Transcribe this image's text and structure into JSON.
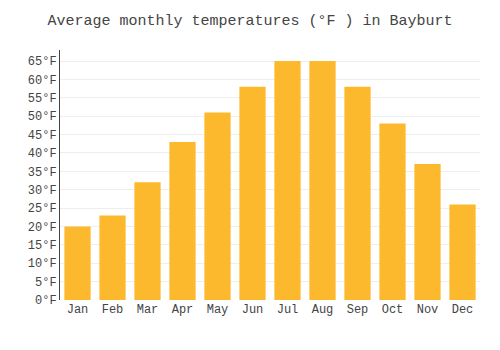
{
  "chart_data": {
    "type": "bar",
    "title": "Average monthly temperatures (°F ) in Bayburt",
    "categories": [
      "Jan",
      "Feb",
      "Mar",
      "Apr",
      "May",
      "Jun",
      "Jul",
      "Aug",
      "Sep",
      "Oct",
      "Nov",
      "Dec"
    ],
    "values": [
      20,
      23,
      32,
      43,
      51,
      58,
      65,
      65,
      58,
      48,
      37,
      26
    ],
    "color": "#FDB92E",
    "ylim": [
      0,
      68
    ],
    "yticks": [
      {
        "value": 0,
        "label": "0°F"
      },
      {
        "value": 5,
        "label": "5°F"
      },
      {
        "value": 10,
        "label": "10°F"
      },
      {
        "value": 15,
        "label": "15°F"
      },
      {
        "value": 20,
        "label": "20°F"
      },
      {
        "value": 25,
        "label": "25°F"
      },
      {
        "value": 30,
        "label": "30°F"
      },
      {
        "value": 35,
        "label": "35°F"
      },
      {
        "value": 40,
        "label": "40°F"
      },
      {
        "value": 45,
        "label": "45°F"
      },
      {
        "value": 50,
        "label": "50°F"
      },
      {
        "value": 55,
        "label": "55°F"
      },
      {
        "value": 60,
        "label": "60°F"
      },
      {
        "value": 65,
        "label": "65°F"
      }
    ],
    "grid": true
  }
}
